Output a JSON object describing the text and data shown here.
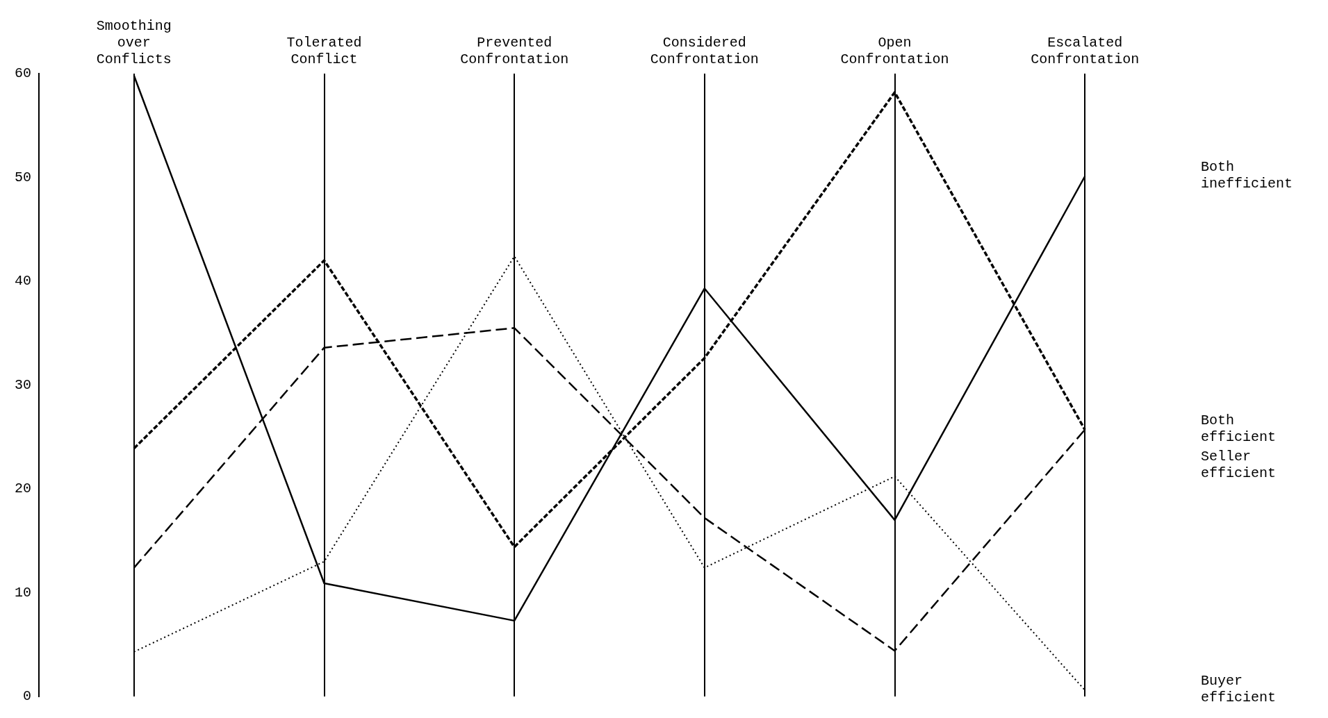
{
  "chart_data": {
    "type": "line",
    "categories": [
      "Smoothing over Conflicts",
      "Tolerated Conflict",
      "Prevented Confrontation",
      "Considered Confrontation",
      "Open Confrontation",
      "Escalated Confrontation"
    ],
    "series": [
      {
        "name": "Both inefficient",
        "color": "#000000",
        "line_style": "solid",
        "values": [
          59.8,
          10.9,
          7.3,
          39.3,
          17.0,
          50.1
        ]
      },
      {
        "name": "Both efficient",
        "color": "#000000",
        "line_style": "dashed",
        "values": [
          23.9,
          42.0,
          14.4,
          32.6,
          58.2,
          25.7
        ]
      },
      {
        "name": "Seller efficient",
        "color": "#000000",
        "line_style": "dashed",
        "values": [
          12.4,
          33.6,
          35.5,
          17.2,
          4.4,
          25.7
        ]
      },
      {
        "name": "Buyer efficient",
        "color": "#000000",
        "line_style": "dotted",
        "values": [
          4.3,
          13.0,
          42.4,
          12.4,
          21.2,
          0.6
        ]
      }
    ],
    "ylim": [
      0,
      60
    ],
    "yticks": [
      0,
      10,
      20,
      30,
      40,
      50,
      60
    ],
    "grid": "x",
    "marker": "none"
  }
}
